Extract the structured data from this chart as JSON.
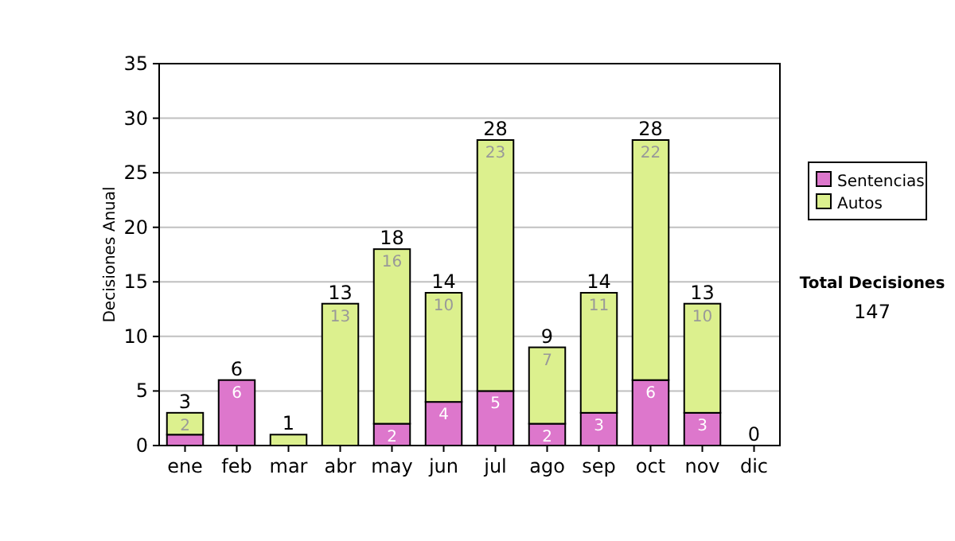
{
  "chart_data": {
    "type": "bar",
    "stacked": true,
    "ylabel": "Decisiones Anual",
    "categories": [
      "ene",
      "feb",
      "mar",
      "abr",
      "may",
      "jun",
      "jul",
      "ago",
      "sep",
      "oct",
      "nov",
      "dic"
    ],
    "series": [
      {
        "name": "Sentencias",
        "color": "#dd77cc",
        "values": [
          1,
          6,
          0,
          0,
          2,
          4,
          5,
          2,
          3,
          6,
          3,
          0
        ],
        "value_labels": [
          null,
          "6",
          null,
          null,
          "2",
          "4",
          "5",
          "2",
          "3",
          "6",
          "3",
          null
        ]
      },
      {
        "name": "Autos",
        "color": "#dcf08e",
        "values": [
          2,
          0,
          1,
          13,
          16,
          10,
          23,
          7,
          11,
          22,
          10,
          0
        ],
        "value_labels": [
          "2",
          null,
          null,
          "13",
          "16",
          "10",
          "23",
          "7",
          "11",
          "22",
          "10",
          null
        ]
      }
    ],
    "totals": [
      "3",
      "6",
      "1",
      "13",
      "18",
      "14",
      "28",
      "9",
      "14",
      "28",
      "13",
      "0"
    ],
    "ylim": [
      0,
      35
    ],
    "yticks": [
      0,
      5,
      10,
      15,
      20,
      25,
      30,
      35
    ],
    "grid": "y",
    "legend": "right",
    "annotations": [
      "Total Decisiones",
      "147"
    ]
  }
}
